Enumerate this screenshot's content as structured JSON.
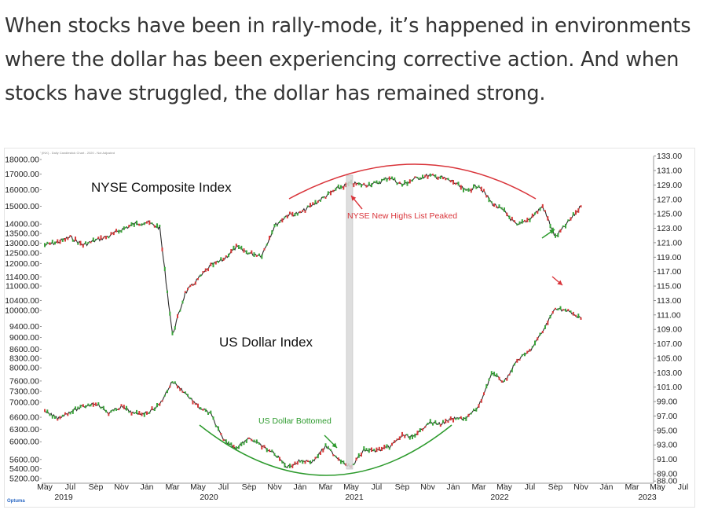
{
  "intro_text": "When stocks have been in rally-mode, it’s happened in environments where the dollar has been experiencing corrective action. And when stocks have struggled, the dollar has remained strong.",
  "chart_header": "US Dollar Index - DXY (INX) - Daily Candlestick Chart - 2020 - Not Adjusted",
  "brand": "Optuma",
  "chart_data": {
    "type": "line",
    "x_months": [
      "May",
      "Jul",
      "Sep",
      "Nov",
      "Jan",
      "Mar",
      "May",
      "Jul",
      "Sep",
      "Nov",
      "Jan",
      "Mar",
      "May",
      "Jul",
      "Sep",
      "Nov",
      "Jan",
      "Mar",
      "May",
      "Jul",
      "Sep",
      "Nov",
      "Jan",
      "Mar",
      "May",
      "Jul"
    ],
    "x_years": [
      "2019",
      "2020",
      "2021",
      "2022",
      "2023"
    ],
    "left_axis_labels": [
      "18000.00",
      "17000.00",
      "16000.00",
      "15000.00",
      "14000.00",
      "13500.00",
      "13000.00",
      "12500.00",
      "12000.00",
      "11400.00",
      "11000.00",
      "10400.00",
      "10000.00",
      "9400.00",
      "9000.00",
      "8600.00",
      "8300.00",
      "8000.00",
      "7600.00",
      "7300.00",
      "7000.00",
      "6600.00",
      "6300.00",
      "6000.00",
      "5600.00",
      "5400.00",
      "5200.00"
    ],
    "right_axis_labels": [
      "135.00",
      "133.00",
      "131.00",
      "129.00",
      "127.00",
      "125.00",
      "123.00",
      "121.00",
      "119.00",
      "117.00",
      "115.00",
      "113.00",
      "111.00",
      "109.00",
      "107.00",
      "105.00",
      "103.00",
      "101.00",
      "99.00",
      "97.00",
      "95.00",
      "93.00",
      "91.00",
      "89.00",
      "88.00"
    ],
    "series": [
      {
        "name": "NYSE Composite Index",
        "axis": "left",
        "points": [
          [
            "2019-05",
            12900
          ],
          [
            "2019-06",
            13050
          ],
          [
            "2019-07",
            13300
          ],
          [
            "2019-08",
            12900
          ],
          [
            "2019-09",
            13150
          ],
          [
            "2019-10",
            13350
          ],
          [
            "2019-11",
            13700
          ],
          [
            "2019-12",
            14000
          ],
          [
            "2020-01",
            14100
          ],
          [
            "2020-02",
            13800
          ],
          [
            "2020-03",
            9100
          ],
          [
            "2020-04",
            10700
          ],
          [
            "2020-05",
            11300
          ],
          [
            "2020-06",
            11900
          ],
          [
            "2020-07",
            12200
          ],
          [
            "2020-08",
            12800
          ],
          [
            "2020-09",
            12500
          ],
          [
            "2020-10",
            12400
          ],
          [
            "2020-11",
            13900
          ],
          [
            "2020-12",
            14500
          ],
          [
            "2021-01",
            14600
          ],
          [
            "2021-02",
            15100
          ],
          [
            "2021-03",
            15600
          ],
          [
            "2021-04",
            16100
          ],
          [
            "2021-05",
            16400
          ],
          [
            "2021-06",
            16300
          ],
          [
            "2021-07",
            16400
          ],
          [
            "2021-08",
            16800
          ],
          [
            "2021-09",
            16300
          ],
          [
            "2021-10",
            16700
          ],
          [
            "2021-11",
            16900
          ],
          [
            "2021-12",
            16800
          ],
          [
            "2022-01",
            16500
          ],
          [
            "2022-02",
            15900
          ],
          [
            "2022-03",
            16300
          ],
          [
            "2022-04",
            15200
          ],
          [
            "2022-05",
            14700
          ],
          [
            "2022-06",
            13900
          ],
          [
            "2022-07",
            14300
          ],
          [
            "2022-08",
            15000
          ],
          [
            "2022-09",
            13300
          ],
          [
            "2022-10",
            14100
          ],
          [
            "2022-11",
            15000
          ]
        ]
      },
      {
        "name": "US Dollar Index",
        "axis": "right",
        "points": [
          [
            "2019-05",
            97.6
          ],
          [
            "2019-06",
            96.7
          ],
          [
            "2019-07",
            97.6
          ],
          [
            "2019-08",
            98.3
          ],
          [
            "2019-09",
            98.8
          ],
          [
            "2019-10",
            97.4
          ],
          [
            "2019-11",
            98.3
          ],
          [
            "2019-12",
            97.3
          ],
          [
            "2020-01",
            97.4
          ],
          [
            "2020-02",
            98.6
          ],
          [
            "2020-03",
            101.8
          ],
          [
            "2020-04",
            100.2
          ],
          [
            "2020-05",
            98.3
          ],
          [
            "2020-06",
            97.3
          ],
          [
            "2020-07",
            93.6
          ],
          [
            "2020-08",
            92.6
          ],
          [
            "2020-09",
            94.0
          ],
          [
            "2020-10",
            92.8
          ],
          [
            "2020-11",
            91.8
          ],
          [
            "2020-12",
            89.9
          ],
          [
            "2021-01",
            90.8
          ],
          [
            "2021-02",
            90.7
          ],
          [
            "2021-03",
            92.8
          ],
          [
            "2021-04",
            91.1
          ],
          [
            "2021-05",
            89.9
          ],
          [
            "2021-06",
            92.3
          ],
          [
            "2021-07",
            92.2
          ],
          [
            "2021-08",
            92.7
          ],
          [
            "2021-09",
            94.3
          ],
          [
            "2021-10",
            94.1
          ],
          [
            "2021-11",
            96.1
          ],
          [
            "2021-12",
            95.9
          ],
          [
            "2022-01",
            96.6
          ],
          [
            "2022-02",
            96.7
          ],
          [
            "2022-03",
            98.3
          ],
          [
            "2022-04",
            102.9
          ],
          [
            "2022-05",
            101.7
          ],
          [
            "2022-06",
            104.7
          ],
          [
            "2022-07",
            106.0
          ],
          [
            "2022-08",
            108.7
          ],
          [
            "2022-09",
            112.0
          ],
          [
            "2022-10",
            111.5
          ],
          [
            "2022-11",
            110.5
          ]
        ]
      }
    ],
    "annotations": [
      {
        "text": "NYSE New Highs List Peaked",
        "color": "#d9343a"
      },
      {
        "text": "US Dollar Bottomed",
        "color": "#2c9a2c"
      }
    ]
  }
}
